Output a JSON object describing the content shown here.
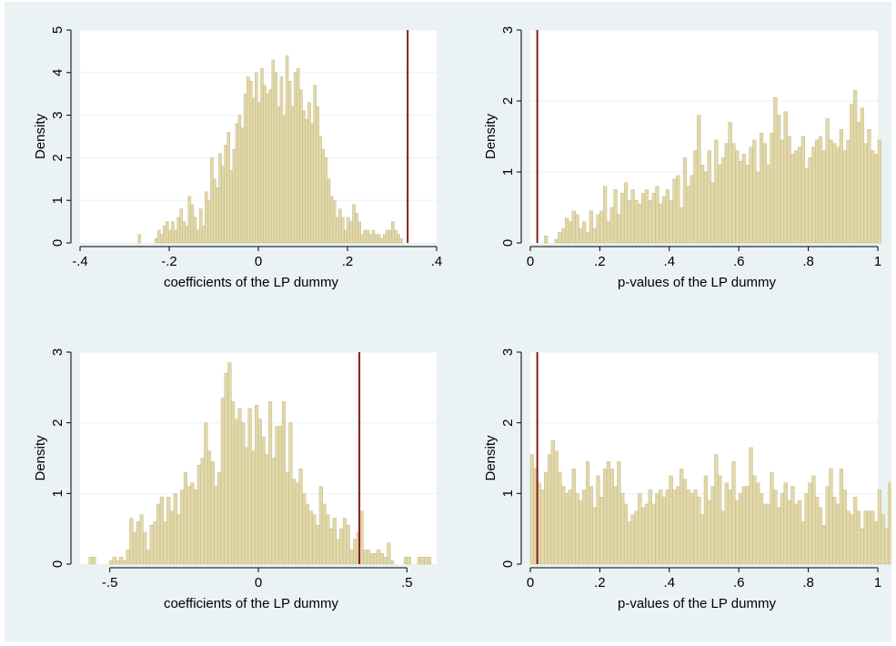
{
  "colors": {
    "background": "#eaf2f3",
    "plot_area": "#ffffff",
    "bar_fill": "#e1d8aa",
    "bar_edge": "#bfb27a",
    "ref_line": "#8b1a1a",
    "grid": "#eaf2f3"
  },
  "chart_data": [
    {
      "type": "bar",
      "xlabel": "coefficients of the LP dummy",
      "ylabel": "Density",
      "xlim": [
        -0.4,
        0.4
      ],
      "ylim": [
        0,
        5
      ],
      "xticks": [
        -0.4,
        -0.2,
        0,
        0.2,
        0.4
      ],
      "xtick_labels": [
        "-.4",
        "-.2",
        "0",
        ".2",
        ".4"
      ],
      "yticks": [
        0,
        1,
        2,
        3,
        4,
        5
      ],
      "ytick_labels": [
        "0",
        "1",
        "2",
        "3",
        "4",
        "5"
      ],
      "bin_start": -0.27,
      "bin_width": 0.00625,
      "values": [
        0.2,
        0,
        0,
        0,
        0,
        0,
        0.1,
        0.3,
        0.2,
        0.4,
        0.5,
        0.3,
        0.5,
        0.3,
        0.6,
        0.8,
        0.5,
        0.4,
        1.1,
        0.9,
        0.6,
        0.3,
        0.8,
        0.4,
        1.2,
        1.0,
        2.0,
        1.5,
        1.3,
        2.1,
        1.8,
        2.3,
        2.6,
        1.7,
        2.2,
        2.8,
        3.0,
        2.7,
        3.5,
        3.9,
        3.8,
        3.4,
        4.0,
        3.3,
        4.1,
        3.7,
        3.5,
        3.6,
        4.3,
        4.0,
        3.2,
        3.9,
        3.0,
        4.4,
        3.8,
        3.2,
        4.0,
        4.1,
        3.6,
        3.1,
        2.9,
        3.3,
        2.8,
        3.7,
        3.2,
        2.5,
        2.2,
        2.0,
        1.5,
        1.1,
        1.0,
        0.6,
        0.8,
        0.6,
        0.3,
        0.6,
        0.5,
        0.9,
        0.7,
        0.5,
        0.2,
        0.3,
        0.3,
        0.2,
        0.3,
        0.2,
        0.2,
        0.1,
        0.2,
        0.3,
        0.3,
        0.5,
        0.3,
        0.2,
        0.1
      ],
      "ref_line_x": 0.335
    },
    {
      "type": "bar",
      "xlabel": "p-values of the LP dummy",
      "ylabel": "Density",
      "xlim": [
        0,
        1
      ],
      "ylim": [
        0,
        3
      ],
      "xticks": [
        0,
        0.2,
        0.4,
        0.6,
        0.8,
        1
      ],
      "xtick_labels": [
        "0",
        ".2",
        ".4",
        ".6",
        ".8",
        "1"
      ],
      "yticks": [
        0,
        1,
        2,
        3
      ],
      "ytick_labels": [
        "0",
        "1",
        "2",
        "3"
      ],
      "bin_start": 0.04,
      "bin_width": 0.01,
      "values": [
        0.1,
        0.0,
        0.0,
        0.05,
        0.15,
        0.2,
        0.35,
        0.3,
        0.45,
        0.4,
        0.2,
        0.3,
        0.15,
        0.45,
        0.2,
        0.4,
        0.45,
        0.8,
        0.3,
        0.5,
        0.75,
        0.4,
        0.7,
        0.85,
        0.6,
        0.75,
        0.6,
        0.55,
        0.7,
        0.75,
        0.6,
        0.7,
        0.8,
        0.55,
        0.65,
        0.75,
        0.6,
        0.9,
        0.95,
        0.5,
        1.2,
        0.8,
        0.95,
        1.3,
        1.8,
        1.1,
        1.0,
        1.3,
        0.85,
        1.45,
        1.1,
        1.2,
        1.4,
        1.7,
        1.4,
        1.3,
        1.15,
        1.25,
        1.1,
        1.35,
        1.45,
        1.0,
        1.55,
        1.4,
        1.1,
        1.55,
        2.05,
        1.8,
        1.45,
        1.85,
        1.5,
        1.25,
        1.3,
        1.35,
        1.5,
        1.05,
        1.2,
        1.35,
        1.45,
        1.5,
        1.3,
        1.75,
        1.45,
        1.4,
        1.35,
        1.6,
        1.3,
        1.45,
        1.95,
        2.15,
        1.7,
        1.9,
        1.4,
        1.6,
        1.3,
        1.25,
        1.45
      ],
      "ref_line_x": 0.02
    },
    {
      "type": "bar",
      "xlabel": "coefficients of the LP dummy",
      "ylabel": "Density",
      "xlim": [
        -0.6,
        0.6
      ],
      "ylim": [
        0,
        3
      ],
      "xticks": [
        -0.5,
        0,
        0.5
      ],
      "xtick_labels": [
        "-.5",
        "0",
        ".5"
      ],
      "yticks": [
        0,
        1,
        2,
        3
      ],
      "ytick_labels": [
        "0",
        "1",
        "2",
        "3"
      ],
      "bin_start": -0.57,
      "bin_width": 0.0114,
      "values": [
        0.1,
        0.1,
        0,
        0,
        0,
        0,
        0.05,
        0.1,
        0.05,
        0.1,
        0.05,
        0.2,
        0.65,
        0.45,
        0.6,
        0.7,
        0.45,
        0.2,
        0.55,
        0.6,
        0.85,
        0.95,
        0.6,
        0.95,
        0.75,
        1.0,
        0.7,
        1.05,
        1.3,
        1.1,
        1.15,
        1.05,
        1.4,
        1.5,
        2.0,
        1.6,
        1.45,
        1.1,
        1.3,
        2.35,
        2.7,
        2.85,
        2.3,
        2.05,
        2.2,
        2.0,
        1.65,
        2.2,
        1.6,
        2.25,
        2.05,
        1.8,
        1.55,
        2.3,
        1.5,
        1.95,
        1.95,
        2.3,
        1.3,
        2.0,
        1.2,
        1.15,
        1.35,
        1.0,
        0.85,
        0.75,
        0.7,
        0.55,
        1.1,
        0.85,
        0.7,
        0.5,
        0.65,
        0.35,
        0.5,
        0.65,
        0.55,
        0.2,
        0.35,
        0.45,
        0.75,
        0.2,
        0.2,
        0.15,
        0.15,
        0.2,
        0.15,
        0.1,
        0.3,
        0.05,
        0,
        0,
        0,
        0.1,
        0.1,
        0,
        0,
        0.1,
        0.1,
        0.1,
        0.1
      ],
      "ref_line_x": 0.34
    },
    {
      "type": "bar",
      "xlabel": "p-values of the LP dummy",
      "ylabel": "Density",
      "xlim": [
        0,
        1
      ],
      "ylim": [
        0,
        3
      ],
      "xticks": [
        0,
        0.2,
        0.4,
        0.6,
        0.8,
        1
      ],
      "xtick_labels": [
        "0",
        ".2",
        ".4",
        ".6",
        ".8",
        "1"
      ],
      "yticks": [
        0,
        1,
        2,
        3
      ],
      "ytick_labels": [
        "0",
        "1",
        "2",
        "3"
      ],
      "bin_start": 0.0,
      "bin_width": 0.01,
      "values": [
        1.55,
        1.35,
        1.15,
        1.05,
        1.3,
        1.55,
        1.75,
        1.6,
        1.3,
        1.1,
        1.0,
        1.05,
        1.35,
        1.0,
        0.9,
        1.05,
        1.45,
        1.1,
        0.8,
        1.25,
        0.95,
        1.35,
        1.45,
        1.35,
        1.1,
        1.45,
        1.0,
        0.85,
        0.6,
        0.7,
        0.75,
        1.0,
        0.8,
        0.85,
        1.05,
        0.85,
        1.0,
        1.05,
        0.95,
        1.05,
        1.25,
        1.05,
        1.1,
        1.35,
        1.2,
        1.05,
        1.0,
        1.05,
        0.95,
        0.7,
        1.25,
        0.9,
        1.1,
        1.55,
        1.25,
        0.75,
        1.15,
        1.05,
        1.45,
        0.9,
        1.0,
        1.1,
        1.1,
        1.65,
        1.25,
        1.15,
        1.0,
        0.85,
        0.85,
        1.3,
        1.05,
        0.8,
        1.0,
        1.15,
        0.9,
        1.1,
        0.85,
        0.9,
        0.6,
        1.0,
        1.15,
        1.25,
        0.95,
        0.8,
        0.55,
        1.1,
        1.35,
        0.95,
        0.85,
        1.35,
        1.05,
        0.75,
        0.7,
        0.95,
        0.75,
        0.5,
        0.75,
        0.75,
        0.75,
        0.6,
        1.05,
        0.7,
        0.5,
        1.15
      ],
      "ref_line_x": 0.02
    }
  ]
}
